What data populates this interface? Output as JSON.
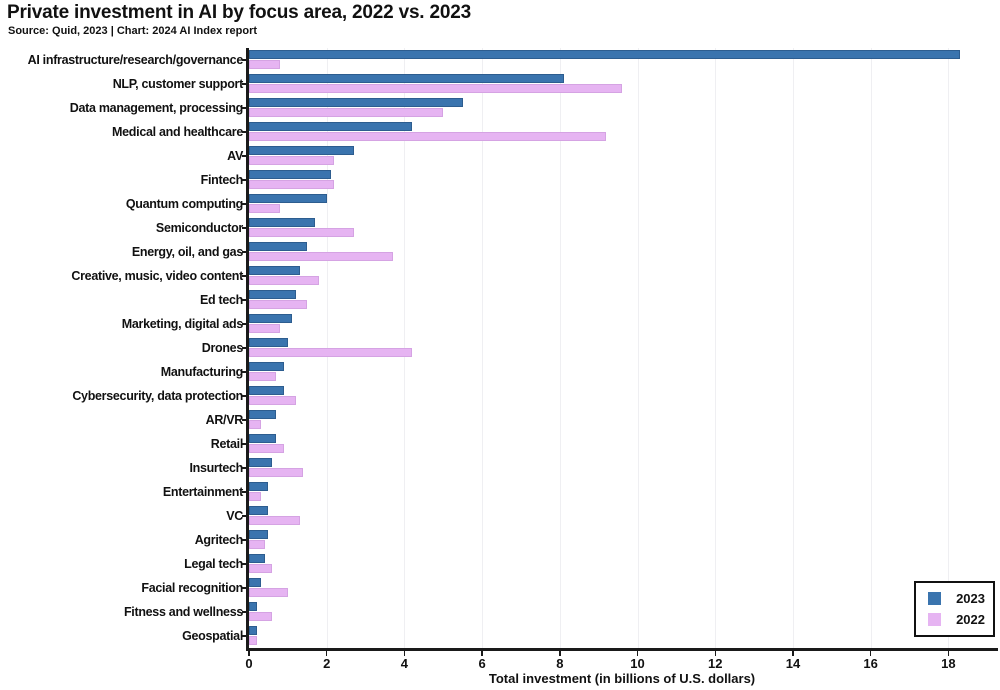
{
  "chart_data": {
    "type": "bar",
    "orientation": "horizontal-grouped",
    "title": "Private investment in AI by focus area, 2022 vs. 2023",
    "source": "Source: Quid, 2023 | Chart: 2024 AI Index report",
    "xlabel": "Total investment (in billions of U.S. dollars)",
    "xlim": [
      0,
      19.2
    ],
    "xticks": [
      0,
      2,
      4,
      6,
      8,
      10,
      12,
      14,
      16,
      18
    ],
    "grid": "vertical light gray gridlines",
    "legend_position": "lower-right",
    "categories": [
      "AI infrastructure/research/governance",
      "NLP, customer support",
      "Data management, processing",
      "Medical and healthcare",
      "AV",
      "Fintech",
      "Quantum computing",
      "Semiconductor",
      "Energy, oil, and gas",
      "Creative, music, video content",
      "Ed tech",
      "Marketing, digital ads",
      "Drones",
      "Manufacturing",
      "Cybersecurity, data protection",
      "AR/VR",
      "Retail",
      "Insurtech",
      "Entertainment",
      "VC",
      "Agritech",
      "Legal tech",
      "Facial recognition",
      "Fitness and wellness",
      "Geospatial"
    ],
    "series": [
      {
        "name": "2023",
        "color": "#3a74ae",
        "values": [
          18.3,
          8.1,
          5.5,
          4.2,
          2.7,
          2.1,
          2.0,
          1.7,
          1.5,
          1.3,
          1.2,
          1.1,
          1.0,
          0.9,
          0.9,
          0.7,
          0.7,
          0.6,
          0.5,
          0.5,
          0.5,
          0.4,
          0.3,
          0.2,
          0.2
        ]
      },
      {
        "name": "2022",
        "color": "#e6b4f2",
        "values": [
          0.8,
          9.6,
          5.0,
          9.2,
          2.2,
          2.2,
          0.8,
          2.7,
          3.7,
          1.8,
          1.5,
          0.8,
          4.2,
          0.7,
          1.2,
          0.3,
          0.9,
          1.4,
          0.3,
          1.3,
          0.4,
          0.6,
          1.0,
          0.6,
          0.2
        ]
      }
    ]
  },
  "colors": {
    "axis": "#1a1a1a",
    "grid": "#efeff2",
    "text": "#111111",
    "background": "#ffffff"
  }
}
